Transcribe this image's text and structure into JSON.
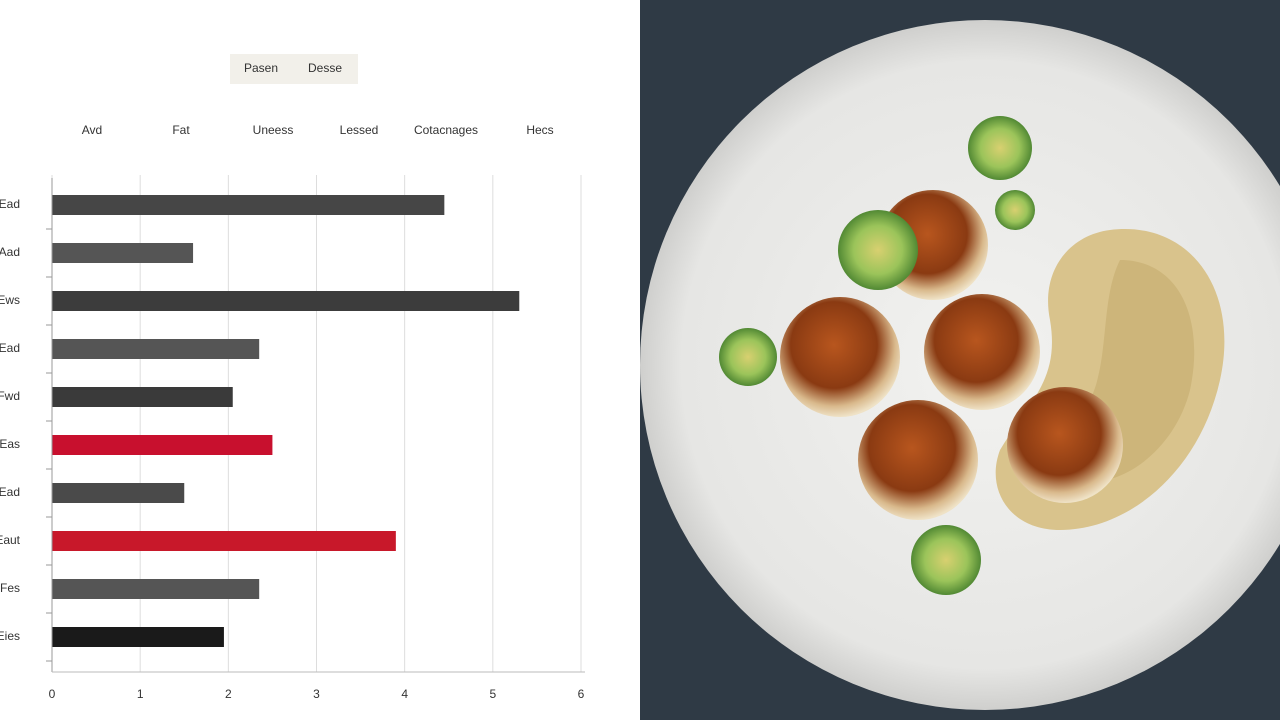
{
  "chart_data": {
    "type": "bar",
    "orientation": "horizontal",
    "legend_labels": [
      "Pasen",
      "Desse"
    ],
    "column_headers": [
      "Avd",
      "Fat",
      "Uneess",
      "Lessed",
      "Cotacnages",
      "Hecs"
    ],
    "categories": [
      "Ead",
      "Aad",
      "Ews",
      "Ead",
      "Fwd",
      "Eas",
      "Ead",
      "Eaut",
      "Fes",
      "Eies"
    ],
    "values": [
      4.45,
      1.6,
      5.3,
      2.35,
      2.05,
      2.5,
      1.5,
      3.9,
      2.35,
      1.95
    ],
    "colors": [
      "#464646",
      "#555555",
      "#3c3c3c",
      "#555555",
      "#3a3a3a",
      "#c8102e",
      "#4a4a4a",
      "#c8182a",
      "#555555",
      "#1a1a1a"
    ],
    "xlim": [
      0,
      6
    ],
    "xticks": [
      0,
      1,
      2,
      3,
      4,
      5,
      6
    ],
    "grid": true
  }
}
